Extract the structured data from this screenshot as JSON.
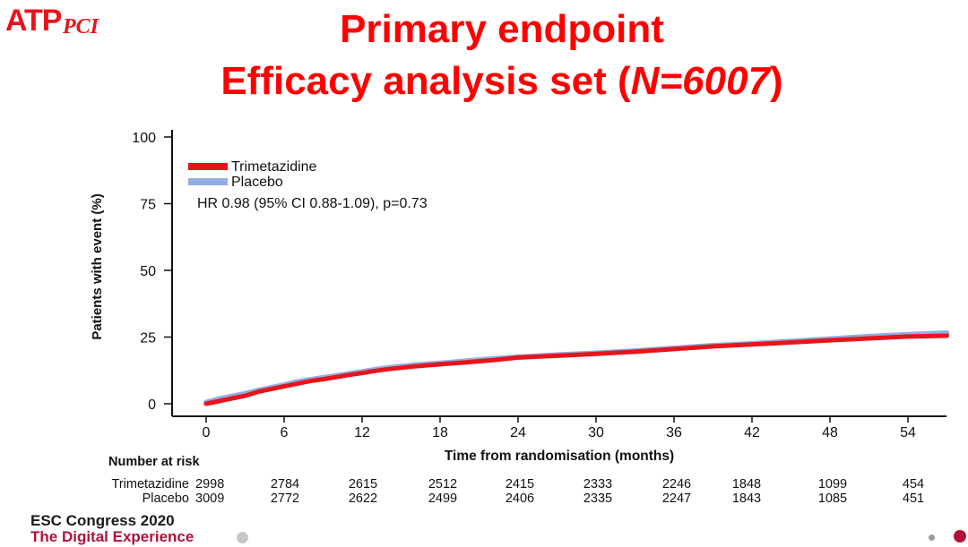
{
  "logo": {
    "main": "ATP",
    "sub": "PCI"
  },
  "title": {
    "line1": "Primary endpoint",
    "line2_pre": "Efficacy analysis set (",
    "line2_italic": "N=6007",
    "line2_post": ")"
  },
  "footer": {
    "line1": "ESC Congress 2020",
    "line2": "The Digital Experience"
  },
  "colors": {
    "title": "#ff0000",
    "trimetazidine": "#e8141b",
    "placebo": "#8fb0e0",
    "footer_accent": "#b0123a"
  },
  "chart_data": {
    "type": "line",
    "title": "",
    "xlabel": "Time from randomisation (months)",
    "ylabel": "Patients with event (%)",
    "xlim": [
      0,
      57
    ],
    "ylim": [
      0,
      100
    ],
    "xticks": [
      0,
      6,
      12,
      18,
      24,
      30,
      36,
      42,
      48,
      54
    ],
    "yticks": [
      0,
      25,
      50,
      75,
      100
    ],
    "legend_position": "top-left",
    "annotation": "HR 0.98 (95% CI 0.88-1.09), p=0.73",
    "series": [
      {
        "name": "Trimetazidine",
        "color": "#e8141b",
        "x": [
          0,
          1,
          2,
          3,
          4,
          5,
          6,
          7,
          8,
          9,
          10,
          11,
          12,
          13,
          14,
          15,
          16,
          18,
          20,
          22,
          24,
          27,
          30,
          33,
          36,
          39,
          42,
          45,
          48,
          51,
          54,
          57
        ],
        "y": [
          0,
          1,
          2,
          3,
          4.5,
          5.5,
          6.5,
          7.5,
          8.5,
          9.2,
          10,
          10.8,
          11.5,
          12.3,
          13,
          13.5,
          14,
          14.8,
          15.5,
          16.3,
          17.3,
          18,
          18.7,
          19.5,
          20.5,
          21.5,
          22.2,
          23,
          23.8,
          24.5,
          25.2,
          25.5
        ]
      },
      {
        "name": "Placebo",
        "color": "#8fb0e0",
        "x": [
          0,
          1,
          2,
          3,
          4,
          5,
          6,
          7,
          8,
          9,
          10,
          11,
          12,
          13,
          14,
          15,
          16,
          18,
          20,
          22,
          24,
          27,
          30,
          33,
          36,
          39,
          42,
          45,
          48,
          51,
          54,
          57
        ],
        "y": [
          0.5,
          1.8,
          2.8,
          3.8,
          5,
          6,
          7,
          8.2,
          9,
          9.8,
          10.5,
          11.2,
          12,
          12.8,
          13.5,
          14,
          14.5,
          15.2,
          16,
          16.8,
          17.5,
          18.3,
          19,
          19.8,
          20.8,
          21.8,
          22.5,
          23.4,
          24.3,
          25.2,
          25.9,
          26.5
        ]
      }
    ],
    "risk_table": {
      "title": "Number at risk",
      "rows": [
        {
          "label": "Trimetazidine",
          "values": [
            "2998",
            "2784",
            "2615",
            "2512",
            "2415",
            "2333",
            "2246",
            "1848",
            "1099",
            "454"
          ]
        },
        {
          "label": "Placebo",
          "values": [
            "3009",
            "2772",
            "2622",
            "2499",
            "2406",
            "2335",
            "2247",
            "1843",
            "1085",
            "451"
          ]
        }
      ]
    }
  }
}
